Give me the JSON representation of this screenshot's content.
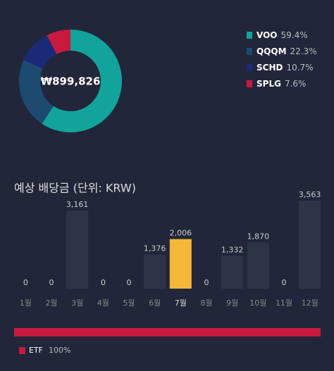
{
  "chart_data": [
    {
      "type": "donut",
      "center_label": "₩899,826",
      "categories": [
        "VOO",
        "QQQM",
        "SCHD",
        "SPLG"
      ],
      "values": [
        59.4,
        22.3,
        10.7,
        7.6
      ],
      "value_labels": [
        "59.4%",
        "22.3%",
        "10.7%",
        "7.6%"
      ],
      "colors": [
        "#12a39a",
        "#1c4a70",
        "#1b2a78",
        "#c8193f"
      ]
    },
    {
      "type": "bar",
      "title": "예상 배당금 (단위: KRW)",
      "categories": [
        "1월",
        "2월",
        "3월",
        "4월",
        "5월",
        "6월",
        "7월",
        "8월",
        "9월",
        "10월",
        "11월",
        "12월"
      ],
      "values": [
        0,
        0,
        3161,
        0,
        0,
        1376,
        2006,
        0,
        1332,
        1870,
        0,
        3563
      ],
      "value_labels": [
        "0",
        "0",
        "3,161",
        "0",
        "0",
        "1,376",
        "2,006",
        "0",
        "1,332",
        "1,870",
        "0",
        "3,563"
      ],
      "color": "#2e3447",
      "highlight": {
        "index": 6,
        "color": "#f3b73a"
      }
    },
    {
      "type": "stacked-bar",
      "series": [
        {
          "name": "ETF",
          "color": "#c8193f",
          "values": [
            100
          ],
          "value_labels": [
            "100%"
          ]
        }
      ]
    }
  ]
}
